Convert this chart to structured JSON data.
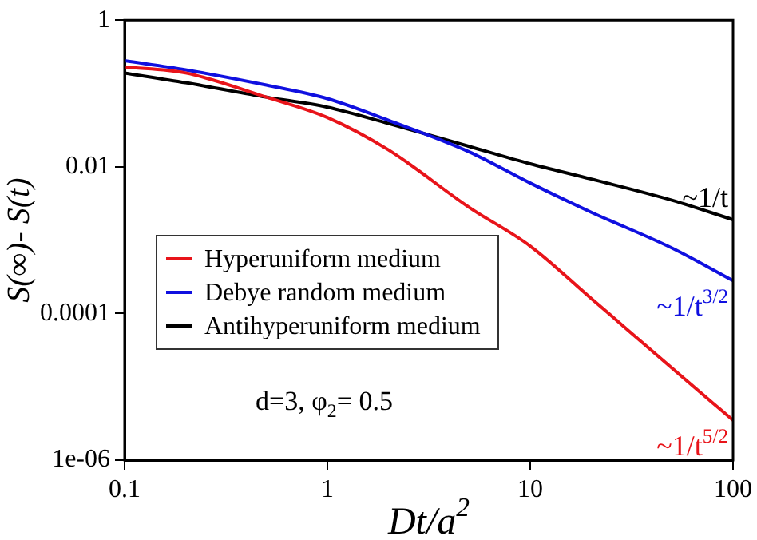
{
  "chart_data": {
    "type": "line",
    "xlabel": "Dt/a$^{2}$",
    "ylabel": "S(∞)- S(t)",
    "log": "xy",
    "xlim": [
      0.1,
      100
    ],
    "ylim": [
      1e-06,
      1
    ],
    "xticks": [
      0.1,
      1,
      10,
      100
    ],
    "yticks": [
      1,
      0.01,
      0.0001,
      {
        "value": 1e-06,
        "label": "1e-06"
      }
    ],
    "grid": false,
    "legend": "bottom left",
    "marker": "none",
    "line_style": "solid",
    "x": [
      0.1,
      0.2,
      0.5,
      1,
      2,
      5,
      10,
      20,
      50,
      100
    ],
    "series": [
      {
        "name": "Hyperuniform medium",
        "color": "#e8141a",
        "values": [
          0.23,
          0.19,
          0.089,
          0.047,
          0.017,
          0.0028,
          0.00083,
          0.00016,
          1.8e-05,
          3.5e-06
        ]
      },
      {
        "name": "Debye random medium",
        "color": "#1010e0",
        "values": [
          0.28,
          0.21,
          0.13,
          0.085,
          0.043,
          0.016,
          0.006,
          0.0024,
          0.00078,
          0.00028
        ]
      },
      {
        "name": "Antihyperuniform medium",
        "color": "#000000",
        "values": [
          0.19,
          0.14,
          0.089,
          0.065,
          0.039,
          0.019,
          0.011,
          0.0068,
          0.0035,
          0.0019
        ]
      }
    ],
    "annotations": [
      "~1/t$^{5/2}$",
      "~1/t$^{3/2}$",
      "~1/t",
      "d=3, φ$_{2}$= 0.5"
    ]
  }
}
